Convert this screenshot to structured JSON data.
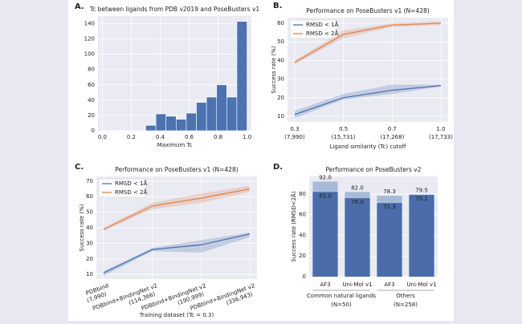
{
  "chart_data": [
    {
      "type": "histogram",
      "panel": "A.",
      "title": "Tc between ligands from PDB v2019 and PoseBusters v1",
      "x_label": "Maximum Tc",
      "bins": [
        0.3,
        0.37,
        0.44,
        0.51,
        0.58,
        0.65,
        0.72,
        0.79,
        0.86,
        0.93,
        1.0
      ],
      "counts": [
        7,
        22,
        19,
        15,
        23,
        37,
        44,
        60,
        44,
        143
      ],
      "color": "#4c72b0",
      "xlim": [
        -0.03,
        1.03
      ],
      "xticks": [
        {
          "value": 0,
          "label": "0.0"
        },
        0.2,
        0.4,
        0.6,
        0.8,
        {
          "value": 1,
          "label": "1.0"
        }
      ],
      "ylim": [
        0,
        150
      ],
      "yticks": [
        0,
        20,
        40,
        60,
        80,
        100,
        120,
        140
      ],
      "grid": true
    },
    {
      "type": "line",
      "panel": "B.",
      "title": "Performance on PoseBusters v1 (N=428)",
      "x_label": "Ligand similarity (Tc) cutoff",
      "y_label": "Success rate (%)",
      "categories": [
        "0.3",
        "0.5",
        "0.7",
        "1.0"
      ],
      "category_counts": [
        "(7,990)",
        "(15,731)",
        "(17,268)",
        "(17,733)"
      ],
      "series": [
        {
          "name": "RMSD < 1Å",
          "color": "#4c72b0",
          "values": [
            11,
            20,
            24,
            26.5
          ],
          "lower": [
            9,
            19,
            22,
            26
          ],
          "upper": [
            13,
            22,
            27,
            27
          ]
        },
        {
          "name": "RMSD < 2Å",
          "color": "#dd8452",
          "values": [
            39,
            54,
            59,
            60
          ],
          "lower": [
            38,
            52,
            58,
            59
          ],
          "upper": [
            40,
            56,
            60,
            61
          ]
        }
      ],
      "ylim": [
        7,
        63
      ],
      "yticks": [
        10,
        20,
        30,
        40,
        50,
        60
      ],
      "grid": true,
      "legend": "upper left"
    },
    {
      "type": "line",
      "panel": "C.",
      "title": "Performance on PoseBusters v1 (N=428)",
      "x_label": "Training dataset (Tc = 0.3)",
      "y_label": "Success rate (%)",
      "categories": [
        "PDBbind",
        "PDBbind+BindingNet v2",
        "PDBbind+BindingNet v2",
        "PDBbind+BindingNet v2"
      ],
      "category_counts": [
        "(7,990)",
        "(114,366)",
        "(190,999)",
        "(336,943)"
      ],
      "xtick_rotation": -20,
      "series": [
        {
          "name": "RMSD < 1Å",
          "color": "#4c72b0",
          "values": [
            11,
            26,
            29,
            36
          ],
          "lower": [
            9,
            25,
            24,
            34
          ],
          "upper": [
            12,
            27,
            32,
            37
          ]
        },
        {
          "name": "RMSD < 2Å",
          "color": "#dd8452",
          "values": [
            39,
            54,
            59,
            65
          ],
          "lower": [
            38,
            52,
            56,
            63
          ],
          "upper": [
            40,
            56,
            62,
            67
          ]
        }
      ],
      "ylim": [
        7,
        73
      ],
      "yticks": [
        10,
        20,
        30,
        40,
        50,
        60,
        70
      ],
      "grid": true,
      "legend": "upper left"
    },
    {
      "type": "bar",
      "panel": "D.",
      "title": "Performance on PoseBusters v2",
      "y_label": "Success rate (RMSD<2Å)",
      "categories": [
        "AF3",
        "Uni-Mol v1",
        "AF3",
        "Uni-Mol v1"
      ],
      "groups": [
        [
          "Common natural ligands",
          "(N=50)"
        ],
        [
          "Others",
          "(N=258)"
        ]
      ],
      "series": [
        {
          "color": "#a7bbd9",
          "values": [
            92,
            82,
            78.3,
            79.5
          ],
          "value_labels": [
            "92.0",
            "82.0",
            "78.3",
            "79.5"
          ]
        },
        {
          "color": "#4a6ca8",
          "values": [
            82,
            76,
            71.3,
            79.1
          ],
          "value_labels": [
            "82.0",
            "76.0",
            "71.3",
            "79.1"
          ]
        }
      ],
      "ylim": [
        0,
        97
      ],
      "yticks": [
        0,
        20,
        40,
        60,
        80
      ],
      "grid": true
    }
  ]
}
